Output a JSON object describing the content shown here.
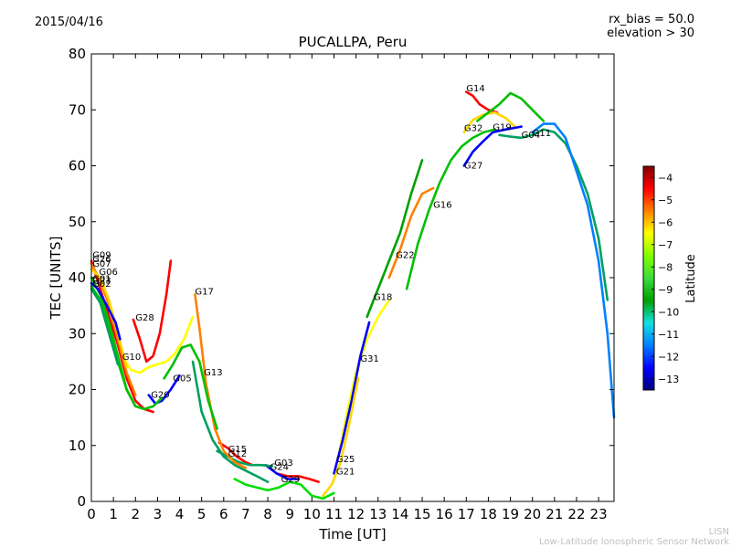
{
  "header": {
    "date": "2015/04/16",
    "rx_bias": "rx_bias = 50.0",
    "elevation": "elevation > 30"
  },
  "footer": {
    "org_short": "LISN",
    "org_long": "Low-Latitude Ionospheric Sensor Network"
  },
  "colors": {
    "cbar_stops": [
      "#00007f",
      "#0000ff",
      "#0080ff",
      "#15e0e0",
      "#00a000",
      "#3ddc3d",
      "#7fff00",
      "#ffff00",
      "#ff8000",
      "#ff0000",
      "#7f0000"
    ]
  },
  "chart_data": {
    "type": "line",
    "title": "PUCALLPA, Peru",
    "xlabel": "Time [UT]",
    "ylabel": "TEC [UNITS]",
    "xlim": [
      0,
      23.7
    ],
    "ylim": [
      0,
      80
    ],
    "xticks": [
      0,
      1,
      2,
      3,
      4,
      5,
      6,
      7,
      8,
      9,
      10,
      11,
      12,
      13,
      14,
      15,
      16,
      17,
      18,
      19,
      20,
      21,
      22,
      23
    ],
    "yticks": [
      0,
      10,
      20,
      30,
      40,
      50,
      60,
      70,
      80
    ],
    "grid": false,
    "colorbar": {
      "label": "Latitude",
      "range": [
        -13.5,
        -3.5
      ],
      "ticks": [
        -4,
        -5,
        -6,
        -7,
        -8,
        -9,
        -10,
        -11,
        -12,
        -13
      ]
    },
    "series": [
      {
        "name": "G14",
        "color": "#ff0000",
        "label_at": [
          17.0,
          73.3
        ],
        "points": [
          [
            17.0,
            73.2
          ],
          [
            17.3,
            72.5
          ],
          [
            17.6,
            71.0
          ],
          [
            18.0,
            70.0
          ],
          [
            18.4,
            69.5
          ]
        ]
      },
      {
        "name": "G32",
        "color": "#ffd700",
        "label_at": [
          16.9,
          66.2
        ],
        "points": [
          [
            16.9,
            66.0
          ],
          [
            17.3,
            68.2
          ],
          [
            17.8,
            69.2
          ],
          [
            18.3,
            69.5
          ],
          [
            18.8,
            68.5
          ],
          [
            19.2,
            67.0
          ]
        ]
      },
      {
        "name": "G19",
        "color": "#00c000",
        "label_at": [
          18.2,
          66.4
        ],
        "points": [
          [
            17.5,
            68.0
          ],
          [
            18.0,
            69.5
          ],
          [
            18.5,
            71.0
          ],
          [
            19.0,
            73.0
          ],
          [
            19.5,
            72.0
          ],
          [
            20.0,
            70.0
          ],
          [
            20.5,
            68.0
          ]
        ]
      },
      {
        "name": "G04",
        "color": "#00a060",
        "label_at": [
          19.5,
          65.0
        ],
        "points": [
          [
            18.5,
            65.5
          ],
          [
            19.0,
            65.2
          ],
          [
            19.5,
            65.0
          ],
          [
            20.0,
            65.5
          ],
          [
            20.5,
            66.5
          ],
          [
            21.0,
            66.0
          ],
          [
            21.5,
            64.0
          ],
          [
            22.0,
            60.0
          ],
          [
            22.5,
            55.0
          ],
          [
            23.0,
            47.0
          ],
          [
            23.4,
            36.0
          ]
        ]
      },
      {
        "name": "G11",
        "color": "#0080ff",
        "label_at": [
          20.0,
          65.3
        ],
        "points": [
          [
            20.0,
            66.0
          ],
          [
            20.5,
            67.5
          ],
          [
            21.0,
            67.5
          ],
          [
            21.5,
            65.0
          ],
          [
            22.0,
            59.0
          ],
          [
            22.5,
            53.0
          ],
          [
            23.0,
            43.0
          ],
          [
            23.4,
            30.0
          ],
          [
            23.7,
            15.0
          ]
        ]
      },
      {
        "name": "G27",
        "color": "#0000ff",
        "label_at": [
          16.9,
          59.5
        ],
        "points": [
          [
            16.9,
            60.0
          ],
          [
            17.3,
            62.5
          ],
          [
            17.8,
            64.5
          ],
          [
            18.2,
            66.0
          ],
          [
            18.8,
            66.5
          ],
          [
            19.5,
            67.0
          ]
        ]
      },
      {
        "name": "G16",
        "color": "#00c000",
        "label_at": [
          15.5,
          52.5
        ],
        "points": [
          [
            14.3,
            38.0
          ],
          [
            14.8,
            46.0
          ],
          [
            15.3,
            52.0
          ],
          [
            15.8,
            57.0
          ],
          [
            16.3,
            61.0
          ],
          [
            16.8,
            63.5
          ],
          [
            17.3,
            65.0
          ],
          [
            17.8,
            66.0
          ],
          [
            18.3,
            66.5
          ]
        ]
      },
      {
        "name": "G22",
        "color": "#ff8000",
        "label_at": [
          13.8,
          43.5
        ],
        "points": [
          [
            13.5,
            40.0
          ],
          [
            14.0,
            45.0
          ],
          [
            14.5,
            51.0
          ],
          [
            15.0,
            55.0
          ],
          [
            15.5,
            56.0
          ]
        ]
      },
      {
        "name": "G18",
        "color": "#00a000",
        "label_at": [
          12.8,
          36.0
        ],
        "points": [
          [
            12.5,
            33.0
          ],
          [
            12.8,
            36.0
          ],
          [
            13.2,
            40.0
          ],
          [
            13.6,
            44.0
          ],
          [
            14.0,
            48.0
          ],
          [
            14.5,
            55.0
          ],
          [
            15.0,
            61.0
          ]
        ]
      },
      {
        "name": "G31",
        "color": "#ffff00",
        "label_at": [
          12.2,
          25.0
        ],
        "points": [
          [
            11.2,
            8.0
          ],
          [
            11.6,
            16.0
          ],
          [
            12.0,
            23.0
          ],
          [
            12.5,
            29.0
          ],
          [
            13.0,
            33.0
          ],
          [
            13.5,
            36.0
          ]
        ]
      },
      {
        "name": "G25",
        "color": "#0000ff",
        "label_at": [
          11.1,
          7.0
        ],
        "points": [
          [
            11.0,
            5.0
          ],
          [
            11.4,
            11.0
          ],
          [
            11.8,
            18.0
          ],
          [
            12.2,
            26.0
          ],
          [
            12.6,
            32.0
          ]
        ]
      },
      {
        "name": "G21",
        "color": "#ffd700",
        "label_at": [
          11.1,
          4.8
        ],
        "points": [
          [
            10.5,
            1.0
          ],
          [
            10.9,
            3.0
          ],
          [
            11.3,
            7.0
          ],
          [
            11.7,
            14.0
          ],
          [
            12.1,
            22.0
          ]
        ]
      },
      {
        "name": "G29",
        "color": "#00e000",
        "label_at": [
          8.6,
          3.4
        ],
        "points": [
          [
            6.5,
            4.0
          ],
          [
            7.0,
            3.0
          ],
          [
            7.5,
            2.5
          ],
          [
            8.0,
            2.0
          ],
          [
            8.5,
            2.5
          ],
          [
            9.0,
            3.5
          ],
          [
            9.5,
            3.0
          ],
          [
            10.0,
            1.0
          ],
          [
            10.5,
            0.5
          ],
          [
            11.0,
            1.5
          ]
        ]
      },
      {
        "name": "G03",
        "color": "#ff0000",
        "label_at": [
          8.3,
          6.4
        ],
        "points": [
          [
            8.4,
            5.0
          ],
          [
            8.9,
            4.5
          ],
          [
            9.4,
            4.5
          ],
          [
            9.9,
            4.0
          ],
          [
            10.3,
            3.5
          ]
        ]
      },
      {
        "name": "G24",
        "color": "#0000ff",
        "label_at": [
          8.1,
          5.6
        ],
        "points": [
          [
            7.9,
            6.5
          ],
          [
            8.4,
            5.0
          ],
          [
            8.9,
            4.0
          ],
          [
            9.4,
            4.0
          ]
        ]
      },
      {
        "name": "G15",
        "color": "#ff0000",
        "label_at": [
          6.2,
          8.8
        ],
        "points": [
          [
            5.8,
            10.5
          ],
          [
            6.2,
            9.5
          ],
          [
            6.6,
            8.0
          ],
          [
            7.0,
            7.0
          ],
          [
            7.3,
            6.5
          ]
        ]
      },
      {
        "name": "G12",
        "color": "#00a060",
        "label_at": [
          6.2,
          8.0
        ],
        "points": [
          [
            5.7,
            9.0
          ],
          [
            6.2,
            8.0
          ],
          [
            6.7,
            7.0
          ],
          [
            7.2,
            6.5
          ],
          [
            7.7,
            6.5
          ],
          [
            8.2,
            6.3
          ]
        ]
      },
      {
        "name": "G13",
        "color": "#00a060",
        "label_at": [
          5.1,
          22.5
        ],
        "points": [
          [
            4.6,
            25.0
          ],
          [
            5.0,
            16.0
          ],
          [
            5.5,
            11.0
          ],
          [
            6.0,
            8.0
          ],
          [
            6.5,
            6.5
          ],
          [
            7.0,
            5.5
          ],
          [
            7.5,
            4.5
          ],
          [
            8.0,
            3.5
          ]
        ]
      },
      {
        "name": "G17",
        "color": "#ff8000",
        "label_at": [
          4.7,
          37.0
        ],
        "points": [
          [
            4.7,
            37.0
          ],
          [
            4.9,
            31.0
          ],
          [
            5.2,
            21.0
          ],
          [
            5.6,
            13.0
          ],
          [
            6.0,
            9.0
          ],
          [
            6.5,
            7.0
          ],
          [
            7.0,
            6.0
          ]
        ]
      },
      {
        "name": "G05",
        "color": "#00c000",
        "label_at": [
          3.7,
          21.5
        ],
        "points": [
          [
            3.3,
            22.0
          ],
          [
            3.7,
            24.5
          ],
          [
            4.1,
            27.5
          ],
          [
            4.5,
            28.0
          ],
          [
            4.9,
            25.0
          ],
          [
            5.3,
            18.0
          ],
          [
            5.7,
            13.0
          ]
        ]
      },
      {
        "name": "G20",
        "color": "#0000ff",
        "label_at": [
          2.7,
          18.5
        ],
        "points": [
          [
            2.6,
            19.0
          ],
          [
            2.9,
            17.5
          ],
          [
            3.2,
            18.0
          ],
          [
            3.6,
            20.0
          ],
          [
            4.0,
            22.5
          ]
        ]
      },
      {
        "name": "G28",
        "color": "#ff0000",
        "label_at": [
          2.0,
          32.3
        ],
        "points": [
          [
            1.9,
            32.5
          ],
          [
            2.2,
            29.0
          ],
          [
            2.5,
            25.0
          ],
          [
            2.8,
            26.0
          ],
          [
            3.1,
            30.0
          ],
          [
            3.4,
            37.0
          ],
          [
            3.6,
            43.0
          ]
        ]
      },
      {
        "name": "G10",
        "color": "#ffff00",
        "label_at": [
          1.4,
          25.3
        ],
        "points": [
          [
            1.4,
            26.0
          ],
          [
            1.8,
            23.5
          ],
          [
            2.2,
            23.0
          ],
          [
            2.6,
            24.0
          ],
          [
            3.0,
            24.5
          ],
          [
            3.4,
            25.0
          ],
          [
            3.8,
            26.5
          ],
          [
            4.2,
            29.0
          ],
          [
            4.6,
            33.0
          ]
        ]
      },
      {
        "name": "G09",
        "color": "#ff0000",
        "label_at": [
          0.05,
          43.5
        ],
        "points": [
          [
            0.0,
            43.0
          ],
          [
            0.4,
            38.0
          ],
          [
            0.8,
            33.0
          ],
          [
            1.2,
            28.0
          ],
          [
            1.6,
            22.0
          ],
          [
            2.0,
            18.0
          ],
          [
            2.4,
            16.5
          ],
          [
            2.8,
            16.0
          ]
        ]
      },
      {
        "name": "G26",
        "color": "#ff8000",
        "label_at": [
          0.05,
          42.8
        ],
        "points": [
          [
            0.0,
            42.5
          ],
          [
            0.4,
            39.5
          ],
          [
            0.8,
            35.0
          ],
          [
            1.2,
            29.0
          ],
          [
            1.6,
            23.0
          ],
          [
            2.0,
            19.0
          ]
        ]
      },
      {
        "name": "G07",
        "color": "#ffd700",
        "label_at": [
          0.05,
          42.0
        ],
        "points": [
          [
            0.0,
            41.5
          ],
          [
            0.4,
            40.0
          ],
          [
            0.8,
            36.0
          ],
          [
            1.2,
            30.0
          ],
          [
            1.6,
            24.0
          ]
        ]
      },
      {
        "name": "G06",
        "color": "#00c000",
        "label_at": [
          0.35,
          40.5
        ],
        "points": [
          [
            0.0,
            40.0
          ],
          [
            0.4,
            37.0
          ],
          [
            0.8,
            32.0
          ],
          [
            1.2,
            26.0
          ],
          [
            1.6,
            20.0
          ],
          [
            2.0,
            17.0
          ],
          [
            2.4,
            16.5
          ],
          [
            2.8,
            17.0
          ],
          [
            3.2,
            18.5
          ]
        ]
      },
      {
        "name": "G01",
        "color": "#0000ff",
        "label_at": [
          0.05,
          39.3
        ],
        "points": [
          [
            0.0,
            39.0
          ],
          [
            0.3,
            38.0
          ],
          [
            0.7,
            35.0
          ],
          [
            1.1,
            32.0
          ],
          [
            1.3,
            29.0
          ]
        ]
      },
      {
        "name": "G23",
        "color": "#00c000",
        "label_at": [
          0.05,
          38.9
        ],
        "points": [
          [
            0.0,
            38.5
          ],
          [
            0.4,
            36.0
          ],
          [
            0.8,
            31.0
          ],
          [
            1.2,
            25.0
          ],
          [
            1.6,
            20.0
          ],
          [
            2.0,
            17.0
          ]
        ]
      },
      {
        "name": "G02",
        "color": "#00a060",
        "label_at": [
          0.05,
          38.4
        ],
        "points": [
          [
            0.0,
            38.0
          ],
          [
            0.4,
            35.5
          ],
          [
            0.8,
            30.0
          ],
          [
            1.2,
            24.5
          ]
        ]
      }
    ]
  }
}
